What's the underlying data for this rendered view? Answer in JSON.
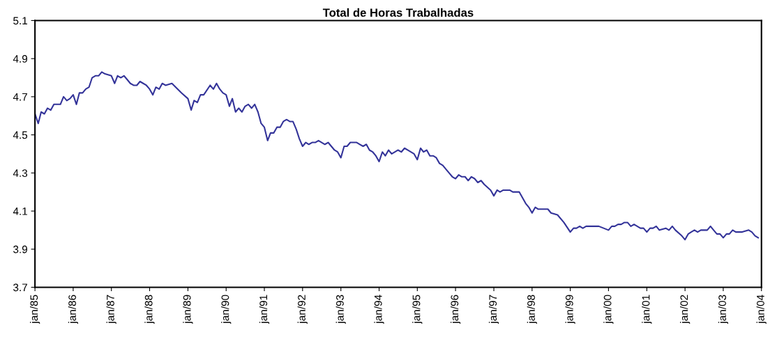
{
  "chart_data": {
    "type": "line",
    "title": "Total de Horas Trabalhadas",
    "x": [
      "1985-01",
      "1985-02",
      "1985-03",
      "1985-04",
      "1985-05",
      "1985-06",
      "1985-07",
      "1985-09",
      "1985-10",
      "1985-11",
      "1985-12",
      "1986-01",
      "1986-02",
      "1986-03",
      "1986-04",
      "1986-05",
      "1986-06",
      "1986-07",
      "1986-08",
      "1986-09",
      "1986-10",
      "1986-11",
      "1987-01",
      "1987-02",
      "1987-03",
      "1987-04",
      "1987-05",
      "1987-06",
      "1987-07",
      "1987-08",
      "1987-09",
      "1987-10",
      "1987-11",
      "1987-12",
      "1988-01",
      "1988-02",
      "1988-03",
      "1988-04",
      "1988-05",
      "1988-06",
      "1988-08",
      "1988-11",
      "1989-01",
      "1989-02",
      "1989-03",
      "1989-04",
      "1989-05",
      "1989-06",
      "1989-08",
      "1989-09",
      "1989-10",
      "1989-11",
      "1989-12",
      "1990-01",
      "1990-02",
      "1990-03",
      "1990-04",
      "1990-05",
      "1990-06",
      "1990-07",
      "1990-08",
      "1990-09",
      "1990-10",
      "1990-11",
      "1990-12",
      "1991-01",
      "1991-02",
      "1991-03",
      "1991-04",
      "1991-05",
      "1991-06",
      "1991-07",
      "1991-08",
      "1991-09",
      "1991-10",
      "1991-11",
      "1991-12",
      "1992-01",
      "1992-02",
      "1992-03",
      "1992-04",
      "1992-05",
      "1992-06",
      "1992-08",
      "1992-09",
      "1992-11",
      "1992-12",
      "1993-01",
      "1993-02",
      "1993-03",
      "1993-04",
      "1993-06",
      "1993-07",
      "1993-08",
      "1993-09",
      "1993-10",
      "1993-11",
      "1993-12",
      "1994-01",
      "1994-02",
      "1994-03",
      "1994-04",
      "1994-05",
      "1994-06",
      "1994-07",
      "1994-08",
      "1994-09",
      "1994-10",
      "1994-12",
      "1995-01",
      "1995-02",
      "1995-03",
      "1995-04",
      "1995-05",
      "1995-06",
      "1995-07",
      "1995-08",
      "1995-09",
      "1995-10",
      "1995-11",
      "1995-12",
      "1996-01",
      "1996-02",
      "1996-03",
      "1996-04",
      "1996-05",
      "1996-06",
      "1996-07",
      "1996-08",
      "1996-09",
      "1996-10",
      "1996-12",
      "1997-01",
      "1997-02",
      "1997-03",
      "1997-04",
      "1997-06",
      "1997-07",
      "1997-08",
      "1997-09",
      "1997-11",
      "1997-12",
      "1998-01",
      "1998-02",
      "1998-03",
      "1998-04",
      "1998-05",
      "1998-06",
      "1998-07",
      "1998-09",
      "1998-11",
      "1999-01",
      "1999-02",
      "1999-03",
      "1999-04",
      "1999-05",
      "1999-06",
      "1999-08",
      "1999-09",
      "1999-10",
      "2000-01",
      "2000-02",
      "2000-03",
      "2000-04",
      "2000-05",
      "2000-06",
      "2000-07",
      "2000-08",
      "2000-09",
      "2000-11",
      "2000-12",
      "2001-01",
      "2001-02",
      "2001-03",
      "2001-04",
      "2001-05",
      "2001-07",
      "2001-08",
      "2001-09",
      "2001-10",
      "2001-12",
      "2002-01",
      "2002-02",
      "2002-03",
      "2002-04",
      "2002-05",
      "2002-06",
      "2002-08",
      "2002-09",
      "2002-10",
      "2002-11",
      "2002-12",
      "2003-01",
      "2003-02",
      "2003-03",
      "2003-04",
      "2003-05",
      "2003-07",
      "2003-09",
      "2003-10",
      "2003-11",
      "2003-12"
    ],
    "series": [
      {
        "color": "#333399",
        "values": [
          4.61,
          4.56,
          4.62,
          4.61,
          4.64,
          4.63,
          4.66,
          4.66,
          4.7,
          4.68,
          4.69,
          4.71,
          4.66,
          4.72,
          4.72,
          4.74,
          4.75,
          4.8,
          4.81,
          4.81,
          4.83,
          4.82,
          4.81,
          4.77,
          4.81,
          4.8,
          4.81,
          4.79,
          4.77,
          4.76,
          4.76,
          4.78,
          4.77,
          4.76,
          4.74,
          4.71,
          4.75,
          4.74,
          4.77,
          4.76,
          4.77,
          4.72,
          4.69,
          4.63,
          4.68,
          4.67,
          4.71,
          4.71,
          4.76,
          4.74,
          4.77,
          4.74,
          4.72,
          4.71,
          4.65,
          4.69,
          4.62,
          4.64,
          4.62,
          4.65,
          4.66,
          4.64,
          4.66,
          4.62,
          4.56,
          4.54,
          4.47,
          4.51,
          4.51,
          4.54,
          4.54,
          4.57,
          4.58,
          4.57,
          4.57,
          4.53,
          4.48,
          4.44,
          4.46,
          4.45,
          4.46,
          4.46,
          4.47,
          4.45,
          4.46,
          4.42,
          4.41,
          4.38,
          4.44,
          4.44,
          4.46,
          4.46,
          4.45,
          4.44,
          4.45,
          4.42,
          4.41,
          4.39,
          4.36,
          4.41,
          4.39,
          4.42,
          4.4,
          4.41,
          4.42,
          4.41,
          4.43,
          4.42,
          4.4,
          4.37,
          4.43,
          4.41,
          4.42,
          4.39,
          4.39,
          4.38,
          4.35,
          4.34,
          4.32,
          4.3,
          4.28,
          4.27,
          4.29,
          4.28,
          4.28,
          4.26,
          4.28,
          4.27,
          4.25,
          4.26,
          4.24,
          4.21,
          4.18,
          4.21,
          4.2,
          4.21,
          4.21,
          4.2,
          4.2,
          4.2,
          4.14,
          4.12,
          4.09,
          4.12,
          4.11,
          4.11,
          4.11,
          4.11,
          4.09,
          4.08,
          4.04,
          3.99,
          4.01,
          4.01,
          4.02,
          4.01,
          4.02,
          4.02,
          4.02,
          4.02,
          4.0,
          4.02,
          4.02,
          4.03,
          4.03,
          4.04,
          4.04,
          4.02,
          4.03,
          4.01,
          4.01,
          3.99,
          4.01,
          4.01,
          4.02,
          4.0,
          4.01,
          4.0,
          4.02,
          4.0,
          3.97,
          3.95,
          3.98,
          3.99,
          4.0,
          3.99,
          4.0,
          4.0,
          4.02,
          4.0,
          3.98,
          3.98,
          3.96,
          3.98,
          3.98,
          4.0,
          3.99,
          3.99,
          4.0,
          3.99,
          3.97,
          3.96
        ]
      }
    ],
    "xlim": [
      "1985-01",
      "2004-01"
    ],
    "xticks": [
      {
        "value": "1985-01",
        "label": "jan/85"
      },
      {
        "value": "1986-01",
        "label": "jan/86"
      },
      {
        "value": "1987-01",
        "label": "jan/87"
      },
      {
        "value": "1988-01",
        "label": "jan/88"
      },
      {
        "value": "1989-01",
        "label": "jan/89"
      },
      {
        "value": "1990-01",
        "label": "jan/90"
      },
      {
        "value": "1991-01",
        "label": "jan/91"
      },
      {
        "value": "1992-01",
        "label": "jan/92"
      },
      {
        "value": "1993-01",
        "label": "jan/93"
      },
      {
        "value": "1994-01",
        "label": "jan/94"
      },
      {
        "value": "1995-01",
        "label": "jan/95"
      },
      {
        "value": "1996-01",
        "label": "jan/96"
      },
      {
        "value": "1997-01",
        "label": "jan/97"
      },
      {
        "value": "1998-01",
        "label": "jan/98"
      },
      {
        "value": "1999-01",
        "label": "jan/99"
      },
      {
        "value": "2000-01",
        "label": "jan/00"
      },
      {
        "value": "2001-01",
        "label": "jan/01"
      },
      {
        "value": "2002-01",
        "label": "jan/02"
      },
      {
        "value": "2003-01",
        "label": "jan/03"
      },
      {
        "value": "2004-01",
        "label": "jan/04"
      }
    ],
    "ylim": [
      3.7,
      5.1
    ],
    "yticks": [
      3.7,
      3.9,
      4.1,
      4.3,
      4.5,
      4.7,
      4.9,
      5.1
    ],
    "grid": false,
    "legend": false,
    "marker": "none",
    "line_style": "solid"
  }
}
